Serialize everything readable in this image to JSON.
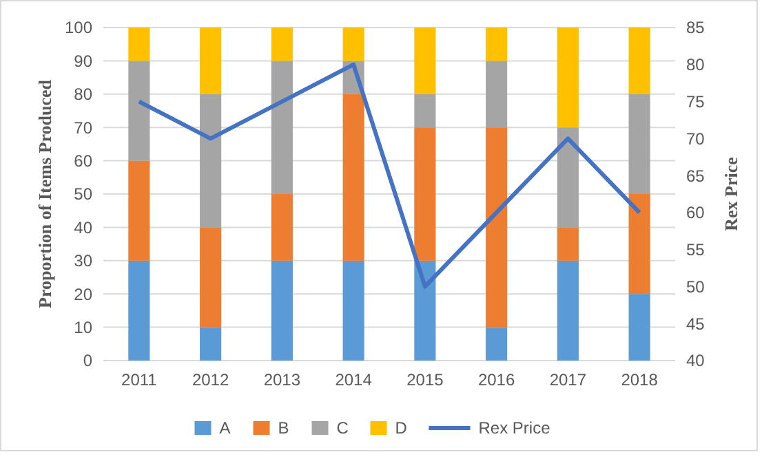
{
  "chart_data": {
    "type": "bar",
    "stacked": true,
    "categories": [
      "2011",
      "2012",
      "2013",
      "2014",
      "2015",
      "2016",
      "2017",
      "2018"
    ],
    "ylabel": "Proportion of Items Produced",
    "y2label": "Rex Price",
    "ylim": [
      0,
      100
    ],
    "yticks": [
      0,
      10,
      20,
      30,
      40,
      50,
      60,
      70,
      80,
      90,
      100
    ],
    "y2lim": [
      40,
      85
    ],
    "y2ticks": [
      40,
      45,
      50,
      55,
      60,
      65,
      70,
      75,
      80,
      85
    ],
    "grid": "y",
    "legend": "bottom",
    "marker": "none",
    "line_style": "solid",
    "series": [
      {
        "name": "A",
        "color": "#5b9bd5",
        "values": [
          30,
          10,
          30,
          30,
          30,
          10,
          30,
          20
        ]
      },
      {
        "name": "B",
        "color": "#ed7d31",
        "values": [
          30,
          30,
          20,
          50,
          40,
          60,
          10,
          30
        ]
      },
      {
        "name": "C",
        "color": "#a5a5a5",
        "values": [
          30,
          40,
          40,
          10,
          10,
          20,
          30,
          30
        ]
      },
      {
        "name": "D",
        "color": "#ffc000",
        "values": [
          10,
          20,
          10,
          10,
          20,
          10,
          30,
          20
        ]
      },
      {
        "name": "Rex Price",
        "type": "line",
        "axis": "y2",
        "color": "#4472c4",
        "values": [
          75,
          70,
          75,
          80,
          50,
          60,
          70,
          60
        ]
      }
    ]
  }
}
